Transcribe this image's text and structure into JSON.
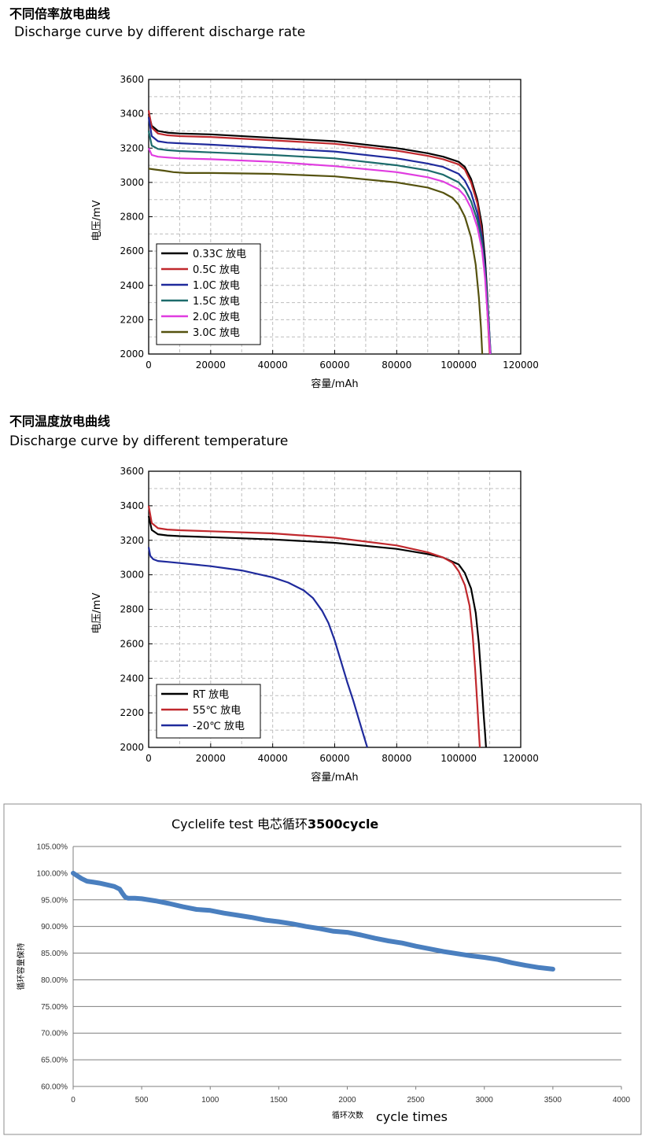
{
  "section1": {
    "heading_cn": "不同倍率放电曲线",
    "heading_en": "Discharge curve by different discharge rate"
  },
  "section2": {
    "heading_cn": "不同温度放电曲线",
    "heading_en": "Discharge curve by different temperature"
  },
  "chart_data": [
    {
      "type": "line",
      "title": "",
      "xlabel": "容量/mAh",
      "ylabel": "电压/mV",
      "xlim": [
        0,
        120000
      ],
      "ylim": [
        2000,
        3600
      ],
      "xticks": [
        0,
        20000,
        40000,
        60000,
        80000,
        100000,
        120000
      ],
      "yticks": [
        2000,
        2200,
        2400,
        2600,
        2800,
        3000,
        3200,
        3400,
        3600
      ],
      "xtick_labels": [
        "0",
        "20000",
        "40000",
        "60000",
        "80000",
        "100000",
        "120000"
      ],
      "ytick_labels": [
        "2000",
        "2200",
        "2400",
        "2600",
        "2800",
        "3000",
        "3200",
        "3400",
        "3600"
      ],
      "grid": true,
      "legend_position": "bottom-left",
      "series": [
        {
          "name": "0.33C 放电",
          "color": "#000000",
          "x": [
            0,
            1000,
            3000,
            6000,
            10000,
            20000,
            40000,
            60000,
            80000,
            90000,
            95000,
            100000,
            102000,
            104000,
            106000,
            107500,
            108500,
            109200,
            109800,
            110200
          ],
          "y": [
            3400,
            3330,
            3300,
            3290,
            3285,
            3280,
            3260,
            3240,
            3200,
            3170,
            3150,
            3120,
            3090,
            3020,
            2900,
            2750,
            2550,
            2350,
            2150,
            2000
          ]
        },
        {
          "name": "0.5C 放电",
          "color": "#c0282d",
          "x": [
            0,
            1000,
            3000,
            6000,
            10000,
            20000,
            40000,
            60000,
            80000,
            90000,
            95000,
            100000,
            102000,
            104000,
            106000,
            107300,
            108300,
            109000,
            109600,
            110000
          ],
          "y": [
            3420,
            3320,
            3285,
            3275,
            3270,
            3265,
            3245,
            3225,
            3185,
            3155,
            3135,
            3105,
            3075,
            3000,
            2880,
            2730,
            2530,
            2330,
            2130,
            2000
          ]
        },
        {
          "name": "1.0C 放电",
          "color": "#1f2a9c",
          "x": [
            0,
            1000,
            3000,
            6000,
            10000,
            20000,
            40000,
            60000,
            80000,
            90000,
            95000,
            100000,
            102000,
            104000,
            106000,
            107500,
            108500,
            109300,
            109900,
            110300
          ],
          "y": [
            3380,
            3270,
            3240,
            3232,
            3228,
            3220,
            3200,
            3180,
            3140,
            3110,
            3090,
            3050,
            3010,
            2940,
            2820,
            2680,
            2500,
            2300,
            2120,
            2000
          ]
        },
        {
          "name": "1.5C 放电",
          "color": "#1c6b6b",
          "x": [
            0,
            1000,
            3000,
            6000,
            10000,
            20000,
            40000,
            60000,
            80000,
            90000,
            95000,
            100000,
            102000,
            104000,
            106000,
            107500,
            108500,
            109300,
            109900,
            110300
          ],
          "y": [
            3300,
            3215,
            3195,
            3188,
            3183,
            3175,
            3160,
            3140,
            3100,
            3070,
            3045,
            3000,
            2960,
            2890,
            2780,
            2650,
            2480,
            2290,
            2110,
            2000
          ]
        },
        {
          "name": "2.0C 放电",
          "color": "#e03ce0",
          "x": [
            0,
            1000,
            3000,
            6000,
            10000,
            20000,
            40000,
            60000,
            80000,
            90000,
            95000,
            100000,
            102000,
            104000,
            106000,
            107500,
            108500,
            109200,
            109800,
            110200
          ],
          "y": [
            3200,
            3160,
            3150,
            3145,
            3140,
            3135,
            3120,
            3095,
            3060,
            3030,
            3005,
            2960,
            2920,
            2850,
            2740,
            2610,
            2440,
            2260,
            2100,
            2000
          ]
        },
        {
          "name": "3.0C 放电",
          "color": "#55520f",
          "x": [
            0,
            2000,
            5000,
            8000,
            12000,
            20000,
            40000,
            60000,
            80000,
            90000,
            95000,
            98000,
            100000,
            102000,
            104000,
            105500,
            106500,
            107200,
            107600
          ],
          "y": [
            3080,
            3075,
            3068,
            3060,
            3055,
            3055,
            3050,
            3035,
            3000,
            2970,
            2940,
            2910,
            2870,
            2800,
            2680,
            2520,
            2330,
            2150,
            2000
          ]
        }
      ]
    },
    {
      "type": "line",
      "title": "",
      "xlabel": "容量/mAh",
      "ylabel": "电压/mV",
      "xlim": [
        0,
        120000
      ],
      "ylim": [
        2000,
        3600
      ],
      "xticks": [
        0,
        20000,
        40000,
        60000,
        80000,
        100000,
        120000
      ],
      "yticks": [
        2000,
        2200,
        2400,
        2600,
        2800,
        3000,
        3200,
        3400,
        3600
      ],
      "xtick_labels": [
        "0",
        "20000",
        "40000",
        "60000",
        "80000",
        "100000",
        "120000"
      ],
      "ytick_labels": [
        "2000",
        "2200",
        "2400",
        "2600",
        "2800",
        "3000",
        "3200",
        "3400",
        "3600"
      ],
      "grid": true,
      "legend_position": "bottom-left",
      "series": [
        {
          "name": "RT 放电",
          "color": "#000000",
          "x": [
            0,
            1000,
            3000,
            6000,
            10000,
            20000,
            40000,
            60000,
            80000,
            90000,
            95000,
            100000,
            102000,
            104000,
            105500,
            106500,
            107300,
            108000,
            108500,
            108800
          ],
          "y": [
            3340,
            3260,
            3235,
            3228,
            3224,
            3218,
            3205,
            3185,
            3150,
            3120,
            3100,
            3060,
            3010,
            2920,
            2780,
            2600,
            2400,
            2200,
            2080,
            2000
          ]
        },
        {
          "name": "55℃ 放电",
          "color": "#c0282d",
          "x": [
            0,
            1000,
            3000,
            6000,
            10000,
            20000,
            40000,
            60000,
            80000,
            90000,
            95000,
            98000,
            100000,
            102000,
            103500,
            104500,
            105300,
            106000,
            106500,
            106800
          ],
          "y": [
            3400,
            3300,
            3270,
            3262,
            3258,
            3252,
            3240,
            3215,
            3170,
            3130,
            3100,
            3070,
            3020,
            2940,
            2820,
            2650,
            2450,
            2250,
            2090,
            2000
          ]
        },
        {
          "name": "-20℃ 放电",
          "color": "#1f2a9c",
          "x": [
            0,
            500,
            1500,
            3000,
            6000,
            10000,
            20000,
            30000,
            40000,
            45000,
            50000,
            53000,
            56000,
            58000,
            60000,
            62000,
            64000,
            66000,
            68000,
            69500,
            70500
          ],
          "y": [
            3160,
            3110,
            3090,
            3080,
            3075,
            3068,
            3050,
            3025,
            2985,
            2955,
            2910,
            2865,
            2790,
            2720,
            2620,
            2500,
            2380,
            2270,
            2150,
            2060,
            2000
          ]
        }
      ]
    },
    {
      "type": "line",
      "title": "Cyclelife test",
      "title_cn": "电芯循环",
      "title_bold": "3500cycle",
      "xlabel_cn": "循环次数",
      "xlabel": "cycle times",
      "ylabel": "循环容量保持",
      "xlim": [
        0,
        4000
      ],
      "ylim": [
        0.6,
        1.05
      ],
      "xticks": [
        0,
        500,
        1000,
        1500,
        2000,
        2500,
        3000,
        3500,
        4000
      ],
      "yticks": [
        0.6,
        0.65,
        0.7,
        0.75,
        0.8,
        0.85,
        0.9,
        0.95,
        1.0,
        1.05
      ],
      "xtick_labels": [
        "0",
        "500",
        "1000",
        "1500",
        "2000",
        "2500",
        "3000",
        "3500",
        "4000"
      ],
      "ytick_labels": [
        "60.00%",
        "65.00%",
        "70.00%",
        "75.00%",
        "80.00%",
        "85.00%",
        "90.00%",
        "95.00%",
        "100.00%",
        "105.00%"
      ],
      "grid": true,
      "series": [
        {
          "name": "",
          "color": "#4a7fbf",
          "x": [
            0,
            30,
            60,
            100,
            150,
            200,
            250,
            300,
            340,
            360,
            380,
            400,
            450,
            500,
            600,
            700,
            800,
            900,
            1000,
            1100,
            1200,
            1300,
            1400,
            1500,
            1600,
            1700,
            1800,
            1900,
            2000,
            2100,
            2200,
            2300,
            2400,
            2500,
            2600,
            2700,
            2800,
            2900,
            3000,
            3100,
            3200,
            3300,
            3400,
            3500
          ],
          "y": [
            1.0,
            0.995,
            0.99,
            0.985,
            0.983,
            0.981,
            0.978,
            0.975,
            0.97,
            0.962,
            0.955,
            0.953,
            0.953,
            0.952,
            0.948,
            0.943,
            0.937,
            0.932,
            0.93,
            0.925,
            0.921,
            0.917,
            0.912,
            0.909,
            0.905,
            0.9,
            0.896,
            0.891,
            0.889,
            0.884,
            0.878,
            0.873,
            0.869,
            0.863,
            0.858,
            0.853,
            0.849,
            0.845,
            0.842,
            0.838,
            0.832,
            0.827,
            0.823,
            0.82
          ]
        }
      ]
    }
  ]
}
